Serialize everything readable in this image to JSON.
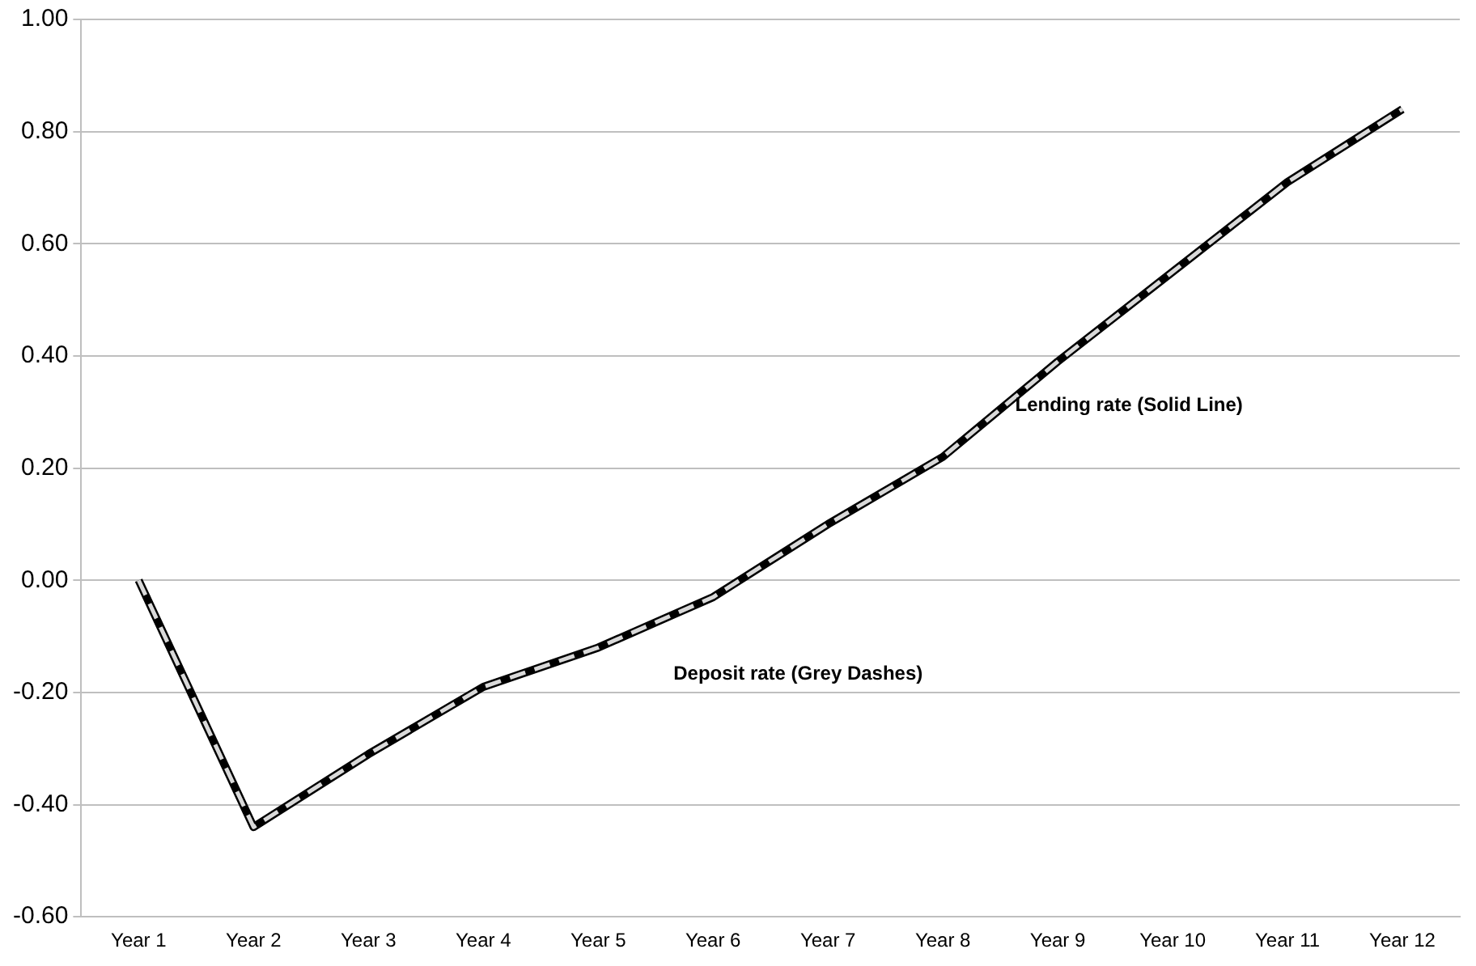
{
  "chart_data": {
    "type": "line",
    "categories": [
      "Year 1",
      "Year 2",
      "Year 3",
      "Year 4",
      "Year 5",
      "Year 6",
      "Year 7",
      "Year 8",
      "Year 9",
      "Year 10",
      "Year 11",
      "Year 12"
    ],
    "series": [
      {
        "color": "#000000",
        "line_style": "solid",
        "values": [
          0.0,
          -0.44,
          -0.31,
          -0.19,
          -0.12,
          -0.03,
          0.1,
          0.22,
          0.39,
          0.55,
          0.71,
          0.84
        ]
      },
      {
        "color": "#d9d9d9",
        "line_style": "dashed",
        "values": [
          0.0,
          -0.44,
          -0.31,
          -0.19,
          -0.12,
          -0.03,
          0.1,
          0.22,
          0.39,
          0.55,
          0.71,
          0.84
        ]
      }
    ],
    "ylim": [
      -0.6,
      1.0
    ],
    "yticks": [
      {
        "value": -0.6,
        "label": "-0.60"
      },
      {
        "value": -0.4,
        "label": "-0.40"
      },
      {
        "value": -0.2,
        "label": "-0.20"
      },
      {
        "value": 0,
        "label": "0.00"
      },
      {
        "value": 0.2,
        "label": "0.20"
      },
      {
        "value": 0.4,
        "label": "0.40"
      },
      {
        "value": 0.6,
        "label": "0.60"
      },
      {
        "value": 0.8,
        "label": "0.80"
      },
      {
        "value": 1.0,
        "label": "1.00"
      }
    ],
    "grid": "y",
    "legend": false,
    "marker": "none",
    "annotations": [
      "Lending rate (Solid Line)",
      "Deposit rate (Grey Dashes)"
    ]
  }
}
